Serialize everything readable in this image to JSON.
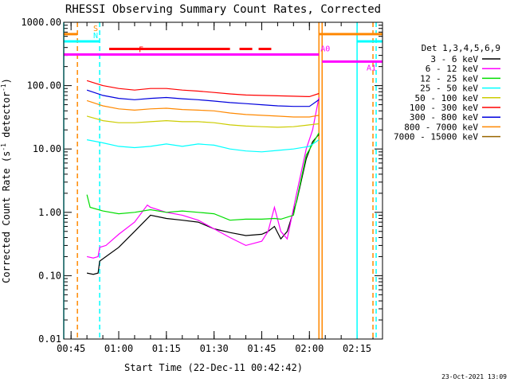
{
  "chart_data": {
    "type": "line",
    "title": "RHESSI Observing Summary Count Rates, Corrected",
    "xlabel": "Start Time (22-Dec-11 00:42:42)",
    "ylabel_prefix": "Corrected Count Rate (s",
    "ylabel_mid": " detector",
    "ylabel_suffix": ")",
    "ylabel_exp": "-1",
    "y_scale": "log",
    "xlim": [
      "00:42:42",
      "02:23:00"
    ],
    "ylim": [
      0.01,
      1000
    ],
    "x_ticks": [
      "00:45",
      "01:00",
      "01:15",
      "01:30",
      "01:45",
      "02:00",
      "02:15"
    ],
    "y_ticks": [
      "0.01",
      "0.10",
      "1.00",
      "10.00",
      "100.00",
      "1000.00"
    ],
    "footer_date": "23-Oct-2021 13:09",
    "legend_title": "Det 1,3,4,5,6,9",
    "legend_position": "right",
    "series": [
      {
        "name": "3 - 6 keV",
        "color": "#000000",
        "x": [
          "00:50:00",
          "00:52:00",
          "00:53:30",
          "00:54:00",
          "00:56:00",
          "01:00:00",
          "01:05:00",
          "01:10:00",
          "01:15:00",
          "01:20:00",
          "01:25:00",
          "01:30:00",
          "01:35:00",
          "01:40:00",
          "01:45:00",
          "01:47:00",
          "01:49:00",
          "01:51:00",
          "01:53:00",
          "01:56:00",
          "01:59:00",
          "02:01:00",
          "02:03:00"
        ],
        "y": [
          0.11,
          0.105,
          0.11,
          0.17,
          0.2,
          0.28,
          0.5,
          0.9,
          0.8,
          0.75,
          0.7,
          0.55,
          0.48,
          0.43,
          0.45,
          0.5,
          0.6,
          0.38,
          0.5,
          1.5,
          7.0,
          13.0,
          17.0
        ]
      },
      {
        "name": "6 - 12 keV",
        "color": "#ff00ff",
        "x": [
          "00:50:00",
          "00:52:00",
          "00:53:30",
          "00:54:00",
          "00:56:00",
          "01:00:00",
          "01:05:00",
          "01:09:00",
          "01:10:00",
          "01:15:00",
          "01:20:00",
          "01:25:00",
          "01:30:00",
          "01:35:00",
          "01:40:00",
          "01:45:00",
          "01:47:00",
          "01:49:00",
          "01:51:00",
          "01:53:00",
          "01:56:00",
          "01:59:00",
          "02:01:00",
          "02:03:00"
        ],
        "y": [
          0.2,
          0.19,
          0.2,
          0.28,
          0.3,
          0.45,
          0.7,
          1.3,
          1.2,
          1.0,
          0.9,
          0.75,
          0.55,
          0.4,
          0.3,
          0.35,
          0.5,
          1.2,
          0.5,
          0.38,
          2.0,
          10.0,
          20.0,
          65.0
        ]
      },
      {
        "name": "12 - 25 keV",
        "color": "#00dd00",
        "x": [
          "00:50:00",
          "00:51:00",
          "00:55:00",
          "01:00:00",
          "01:05:00",
          "01:10:00",
          "01:15:00",
          "01:20:00",
          "01:25:00",
          "01:30:00",
          "01:35:00",
          "01:40:00",
          "01:45:00",
          "01:49:00",
          "01:51:00",
          "01:55:00",
          "01:59:00",
          "02:01:00",
          "02:03:00"
        ],
        "y": [
          1.9,
          1.2,
          1.05,
          0.95,
          1.0,
          1.1,
          1.0,
          1.05,
          1.0,
          0.95,
          0.75,
          0.78,
          0.78,
          0.8,
          0.78,
          0.9,
          8.0,
          12.0,
          18.0
        ]
      },
      {
        "name": "25 - 50 keV",
        "color": "#00ffff",
        "x": [
          "00:50:00",
          "00:55:00",
          "01:00:00",
          "01:05:00",
          "01:10:00",
          "01:15:00",
          "01:20:00",
          "01:25:00",
          "01:30:00",
          "01:35:00",
          "01:40:00",
          "01:45:00",
          "01:50:00",
          "01:55:00",
          "02:00:00",
          "02:03:00"
        ],
        "y": [
          14.0,
          12.5,
          11.0,
          10.5,
          11.0,
          12.0,
          11.0,
          12.0,
          11.5,
          10.0,
          9.3,
          9.0,
          9.5,
          10.0,
          11.0,
          14.0
        ]
      },
      {
        "name": "50 - 100 keV",
        "color": "#cccc00",
        "x": [
          "00:50:00",
          "00:55:00",
          "01:00:00",
          "01:05:00",
          "01:10:00",
          "01:15:00",
          "01:20:00",
          "01:25:00",
          "01:30:00",
          "01:35:00",
          "01:40:00",
          "01:45:00",
          "01:50:00",
          "01:55:00",
          "02:00:00",
          "02:03:00"
        ],
        "y": [
          33.0,
          28.0,
          26.0,
          26.0,
          27.0,
          28.0,
          27.0,
          27.0,
          26.0,
          24.0,
          23.0,
          22.5,
          22.0,
          22.5,
          24.0,
          25.0
        ]
      },
      {
        "name": "100 - 300 keV",
        "color": "#ff0000",
        "x": [
          "00:50:00",
          "00:55:00",
          "01:00:00",
          "01:05:00",
          "01:10:00",
          "01:15:00",
          "01:20:00",
          "01:25:00",
          "01:30:00",
          "01:35:00",
          "01:40:00",
          "01:45:00",
          "01:50:00",
          "01:55:00",
          "02:00:00",
          "02:03:00"
        ],
        "y": [
          120.0,
          100.0,
          90.0,
          85.0,
          90.0,
          90.0,
          85.0,
          82.0,
          78.0,
          74.0,
          71.0,
          70.0,
          69.0,
          68.0,
          67.0,
          75.0
        ]
      },
      {
        "name": "300 - 800 keV",
        "color": "#0000dd",
        "x": [
          "00:50:00",
          "00:55:00",
          "01:00:00",
          "01:05:00",
          "01:10:00",
          "01:15:00",
          "01:20:00",
          "01:25:00",
          "01:30:00",
          "01:35:00",
          "01:40:00",
          "01:45:00",
          "01:50:00",
          "01:55:00",
          "02:00:00",
          "02:03:00"
        ],
        "y": [
          85.0,
          70.0,
          63.0,
          60.0,
          63.0,
          65.0,
          62.0,
          60.0,
          57.0,
          54.0,
          52.0,
          50.0,
          48.0,
          47.0,
          47.0,
          60.0
        ]
      },
      {
        "name": "800 - 7000 keV",
        "color": "#ff8800",
        "x": [
          "00:50:00",
          "00:55:00",
          "01:00:00",
          "01:05:00",
          "01:10:00",
          "01:15:00",
          "01:20:00",
          "01:25:00",
          "01:30:00",
          "01:35:00",
          "01:40:00",
          "01:45:00",
          "01:50:00",
          "01:55:00",
          "02:00:00",
          "02:03:00"
        ],
        "y": [
          58.0,
          48.0,
          43.0,
          41.0,
          43.0,
          44.0,
          42.0,
          41.0,
          40.0,
          37.0,
          35.0,
          34.0,
          33.0,
          32.0,
          32.0,
          34.0
        ]
      },
      {
        "name": "7000 - 15000 keV",
        "color": "#996600",
        "x": [],
        "y": []
      }
    ],
    "annotations": [
      {
        "label": "S",
        "color": "#ff8800",
        "x_start": "00:42:42",
        "x_end": "00:47:00",
        "y": 650.0,
        "style": "solid"
      },
      {
        "label": "",
        "color": "#ff8800",
        "x_start": "02:03:00",
        "x_end": "02:23:00",
        "y": 650.0,
        "style": "solid"
      },
      {
        "label": "N",
        "color": "#00ffff",
        "x_start": "00:42:42",
        "x_end": "00:54:00",
        "y": 500.0,
        "style": "solid"
      },
      {
        "label": "",
        "color": "#00ffff",
        "x_start": "02:15:00",
        "x_end": "02:23:00",
        "y": 500.0,
        "style": "solid"
      },
      {
        "label": "F",
        "color": "#ff0000",
        "x_start": "00:57:00",
        "x_end": "01:35:00",
        "y": 380.0,
        "style": "solid"
      },
      {
        "label": "",
        "color": "#ff0000",
        "x_start": "01:38:00",
        "x_end": "01:48:00",
        "y": 380.0,
        "style": "dashed"
      },
      {
        "label": "A0",
        "color": "#ff00ff",
        "x_start": "00:42:42",
        "x_end": "02:03:00",
        "y": 310.0,
        "style": "solid"
      },
      {
        "label": "A1",
        "color": "#ff00ff",
        "x_start": "02:04:00",
        "x_end": "02:23:00",
        "y": 240.0,
        "style": "solid"
      }
    ],
    "vertical_lines": [
      {
        "x": "00:42:42",
        "color": "#00ffff",
        "style": "solid"
      },
      {
        "x": "00:47:00",
        "color": "#ff8800",
        "style": "dashed"
      },
      {
        "x": "00:54:00",
        "color": "#00ffff",
        "style": "dashed"
      },
      {
        "x": "02:03:00",
        "color": "#ff8800",
        "style": "solid"
      },
      {
        "x": "02:04:00",
        "color": "#ff8800",
        "style": "solid"
      },
      {
        "x": "02:15:00",
        "color": "#00ffff",
        "style": "solid"
      },
      {
        "x": "02:20:00",
        "color": "#ff8800",
        "style": "dashed"
      },
      {
        "x": "02:21:00",
        "color": "#00ffff",
        "style": "dashed"
      }
    ]
  }
}
